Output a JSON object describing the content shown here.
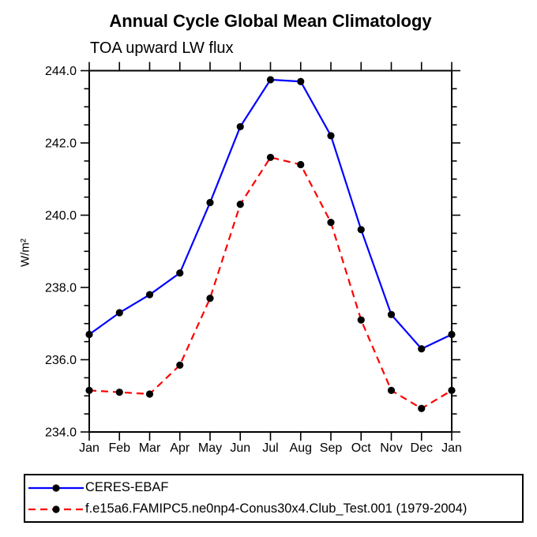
{
  "chart_data": {
    "type": "line",
    "title": "Annual Cycle Global Mean Climatology",
    "subtitle": "TOA upward LW flux",
    "ylabel": "W/m²",
    "xlabel": "",
    "categories": [
      "Jan",
      "Feb",
      "Mar",
      "Apr",
      "May",
      "Jun",
      "Jul",
      "Aug",
      "Sep",
      "Oct",
      "Nov",
      "Dec",
      "Jan"
    ],
    "ylim": [
      234.0,
      244.0
    ],
    "ytick_values": [
      234.0,
      236.0,
      238.0,
      240.0,
      242.0,
      244.0
    ],
    "ytick_labels": [
      "234.0",
      "236.0",
      "238.0",
      "240.0",
      "242.0",
      "244.0"
    ],
    "ytick_minor_values": [
      234.5,
      235.0,
      235.5,
      236.5,
      237.0,
      237.5,
      238.5,
      239.0,
      239.5,
      240.5,
      241.0,
      241.5,
      242.5,
      243.0,
      243.5
    ],
    "grid": false,
    "legend_position": "bottom-left",
    "series": [
      {
        "name": "CERES-EBAF",
        "color": "#0000ff",
        "line_style": "solid",
        "marker": "circle",
        "marker_color": "#000000",
        "values": [
          236.7,
          237.3,
          237.8,
          238.4,
          240.35,
          242.45,
          243.75,
          243.7,
          242.2,
          239.6,
          237.25,
          236.3,
          236.7
        ]
      },
      {
        "name": "f.e15a6.FAMIPC5.ne0np4-Conus30x4.Club_Test.001 (1979-2004)",
        "color": "#ff0000",
        "line_style": "dashed",
        "marker": "circle",
        "marker_color": "#000000",
        "values": [
          235.15,
          235.1,
          235.05,
          235.85,
          237.7,
          240.3,
          241.6,
          241.4,
          239.8,
          237.1,
          235.15,
          234.65,
          235.15
        ]
      }
    ],
    "axis_color": "#000000",
    "background_color": "#ffffff"
  }
}
